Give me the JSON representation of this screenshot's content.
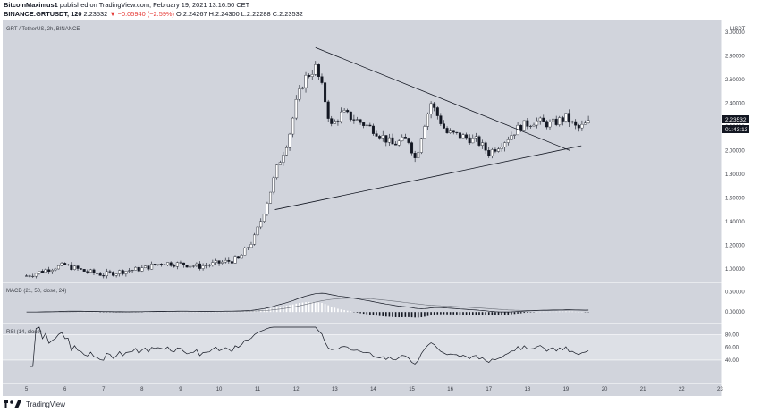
{
  "header": {
    "line1_author": "BitcoinMaximus1",
    "line1_rest": "published on TradingView.com, February 19, 2021 13:16:50 CET",
    "symbol": "BINANCE:GRTUSDT, 120",
    "last": "2.23532",
    "change": "▼ −0.05940 (−2.59%)",
    "ohlc": "O:2.24267 H:2.24300 L:2.22288 C:2.23532"
  },
  "chart": {
    "pane_title": "GRT / TetherUS, 2h, BINANCE",
    "currency": "USDT",
    "price_tag": "2.23532",
    "countdown_tag": "01:43:13",
    "macd_label": "MACD (21, 50, close, 24)",
    "rsi_label": "RSI (14, close)"
  },
  "footer": {
    "brand": "TradingView"
  },
  "chart_data": {
    "type": "candlestick",
    "title": "GRT / TetherUS, 2h, BINANCE",
    "y_axis": {
      "ticks": [
        "1.00000",
        "1.20000",
        "1.40000",
        "1.60000",
        "1.80000",
        "2.00000",
        "2.20000",
        "2.40000",
        "2.60000",
        "2.80000",
        "3.00000"
      ],
      "range": [
        0.9,
        3.0
      ]
    },
    "x_axis": {
      "ticks": [
        "5",
        "6",
        "7",
        "8",
        "9",
        "10",
        "11",
        "12",
        "13",
        "14",
        "15",
        "16",
        "17",
        "18",
        "19",
        "20",
        "21",
        "22",
        "23"
      ]
    },
    "approx_close_path": [
      {
        "day": 5.0,
        "price": 0.94
      },
      {
        "day": 5.7,
        "price": 1.01
      },
      {
        "day": 6.0,
        "price": 1.03
      },
      {
        "day": 6.5,
        "price": 0.98
      },
      {
        "day": 7.0,
        "price": 0.95
      },
      {
        "day": 7.5,
        "price": 0.98
      },
      {
        "day": 8.0,
        "price": 1.0
      },
      {
        "day": 8.5,
        "price": 1.05
      },
      {
        "day": 9.0,
        "price": 1.04
      },
      {
        "day": 9.5,
        "price": 1.02
      },
      {
        "day": 10.0,
        "price": 1.05
      },
      {
        "day": 10.5,
        "price": 1.08
      },
      {
        "day": 10.9,
        "price": 1.25
      },
      {
        "day": 11.1,
        "price": 1.42
      },
      {
        "day": 11.3,
        "price": 1.62
      },
      {
        "day": 11.5,
        "price": 1.85
      },
      {
        "day": 11.8,
        "price": 2.1
      },
      {
        "day": 12.0,
        "price": 2.4
      },
      {
        "day": 12.2,
        "price": 2.6
      },
      {
        "day": 12.5,
        "price": 2.7
      },
      {
        "day": 12.7,
        "price": 2.5
      },
      {
        "day": 12.9,
        "price": 2.2
      },
      {
        "day": 13.2,
        "price": 2.32
      },
      {
        "day": 13.6,
        "price": 2.25
      },
      {
        "day": 14.0,
        "price": 2.18
      },
      {
        "day": 14.5,
        "price": 2.05
      },
      {
        "day": 14.9,
        "price": 2.1
      },
      {
        "day": 15.1,
        "price": 1.92
      },
      {
        "day": 15.3,
        "price": 2.2
      },
      {
        "day": 15.5,
        "price": 2.4
      },
      {
        "day": 15.9,
        "price": 2.15
      },
      {
        "day": 16.3,
        "price": 2.12
      },
      {
        "day": 16.7,
        "price": 2.08
      },
      {
        "day": 17.0,
        "price": 1.98
      },
      {
        "day": 17.4,
        "price": 2.08
      },
      {
        "day": 17.8,
        "price": 2.2
      },
      {
        "day": 18.2,
        "price": 2.25
      },
      {
        "day": 18.6,
        "price": 2.22
      },
      {
        "day": 19.0,
        "price": 2.28
      },
      {
        "day": 19.3,
        "price": 2.18
      },
      {
        "day": 19.6,
        "price": 2.235
      }
    ],
    "annotations": [
      {
        "type": "trendline",
        "from": {
          "day": 11.45,
          "price": 1.5
        },
        "to": {
          "day": 19.4,
          "price": 2.04
        }
      },
      {
        "type": "trendline",
        "from": {
          "day": 12.5,
          "price": 2.87
        },
        "to": {
          "day": 19.1,
          "price": 2.0
        }
      }
    ],
    "last_price": 2.23532,
    "macd": {
      "ticks": [
        "0.50000",
        "0.00000"
      ],
      "range": [
        -0.15,
        0.6
      ]
    },
    "rsi": {
      "ticks": [
        "80.00",
        "60.00",
        "40.00"
      ],
      "range": [
        30,
        92
      ],
      "band": [
        40,
        80
      ]
    }
  }
}
